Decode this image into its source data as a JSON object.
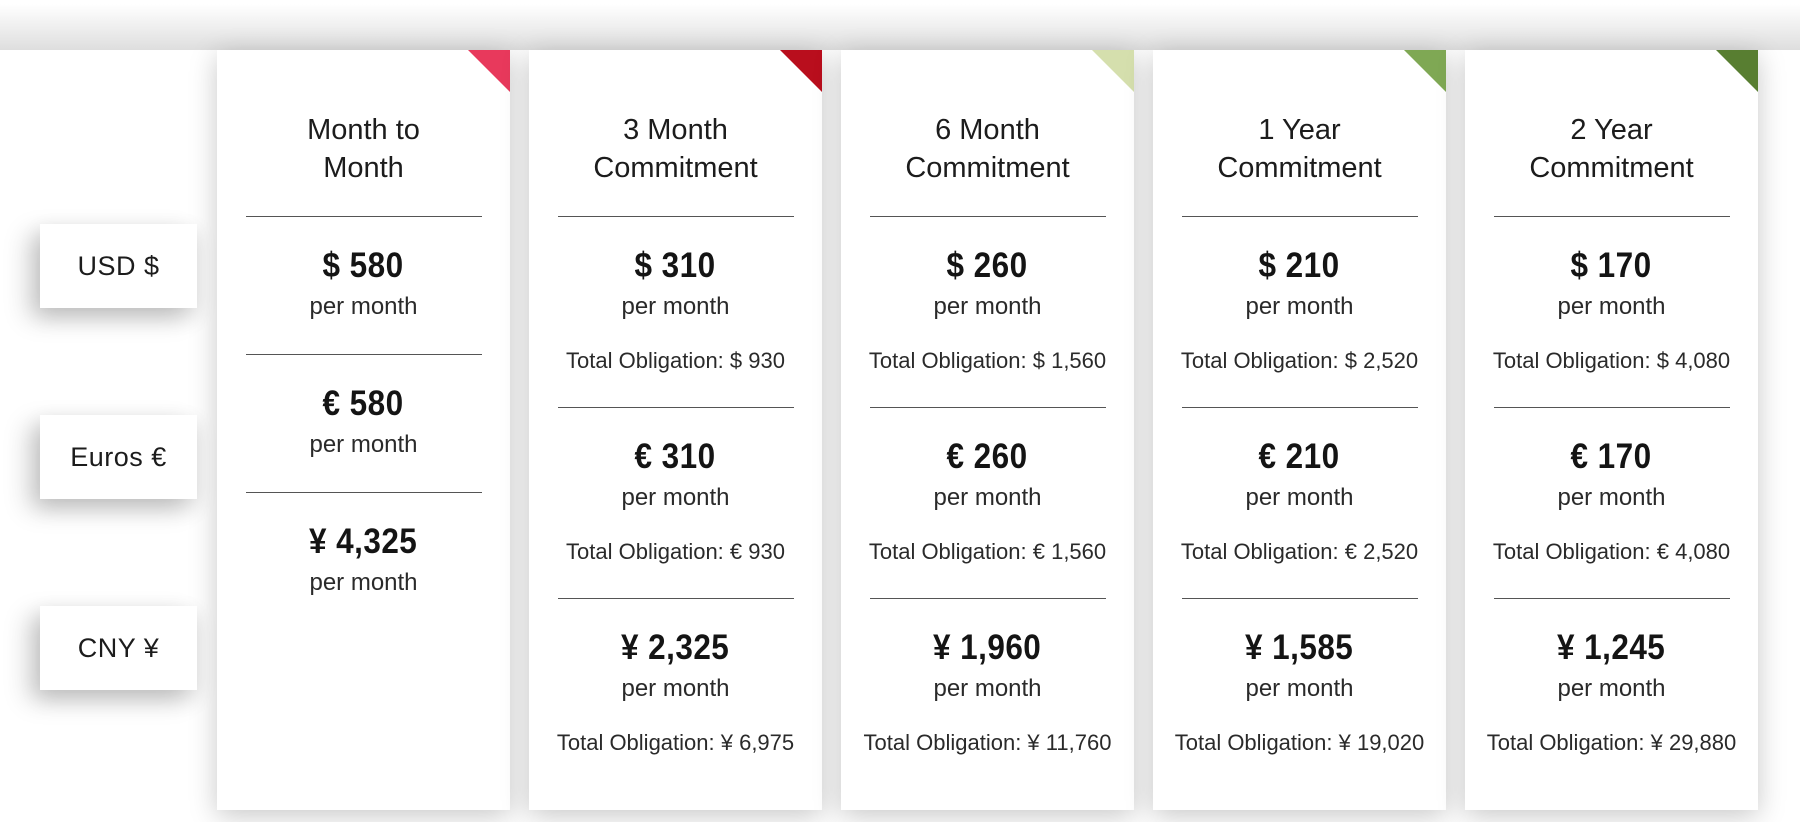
{
  "labels": {
    "per_month": "per month"
  },
  "row_labels": {
    "usd": "USD $",
    "eur": "Euros €",
    "cny": "CNY ¥"
  },
  "colors": {
    "divider": "#555555",
    "ribbon_month_to_month": "#e8395c",
    "ribbon_3_month": "#b90e1d",
    "ribbon_6_month": "#d5dfad",
    "ribbon_1_year": "#7fa854",
    "ribbon_2_year": "#587e31"
  },
  "cards": [
    {
      "title_line1": "Month to",
      "title_line2": "Month",
      "ribbon_color": "#e8395c",
      "usd": {
        "price": "$ 580",
        "total": ""
      },
      "eur": {
        "price": "€ 580",
        "total": ""
      },
      "cny": {
        "price": "¥ 4,325",
        "total": ""
      }
    },
    {
      "title_line1": "3 Month",
      "title_line2": "Commitment",
      "ribbon_color": "#b90e1d",
      "usd": {
        "price": "$ 310",
        "total": "Total Obligation: $ 930"
      },
      "eur": {
        "price": "€ 310",
        "total": "Total Obligation: € 930"
      },
      "cny": {
        "price": "¥ 2,325",
        "total": "Total Obligation: ¥ 6,975"
      }
    },
    {
      "title_line1": "6 Month",
      "title_line2": "Commitment",
      "ribbon_color": "#d5dfad",
      "usd": {
        "price": "$ 260",
        "total": "Total Obligation: $ 1,560"
      },
      "eur": {
        "price": "€ 260",
        "total": "Total Obligation: € 1,560"
      },
      "cny": {
        "price": "¥ 1,960",
        "total": "Total Obligation: ¥ 11,760"
      }
    },
    {
      "title_line1": "1 Year",
      "title_line2": "Commitment",
      "ribbon_color": "#7fa854",
      "usd": {
        "price": "$ 210",
        "total": "Total Obligation: $ 2,520"
      },
      "eur": {
        "price": "€ 210",
        "total": "Total Obligation: € 2,520"
      },
      "cny": {
        "price": "¥ 1,585",
        "total": "Total Obligation: ¥ 19,020"
      }
    },
    {
      "title_line1": "2 Year",
      "title_line2": "Commitment",
      "ribbon_color": "#587e31",
      "usd": {
        "price": "$ 170",
        "total": "Total Obligation: $ 4,080"
      },
      "eur": {
        "price": "€ 170",
        "total": "Total Obligation: € 4,080"
      },
      "cny": {
        "price": "¥ 1,245",
        "total": "Total Obligation: ¥ 29,880"
      }
    }
  ]
}
